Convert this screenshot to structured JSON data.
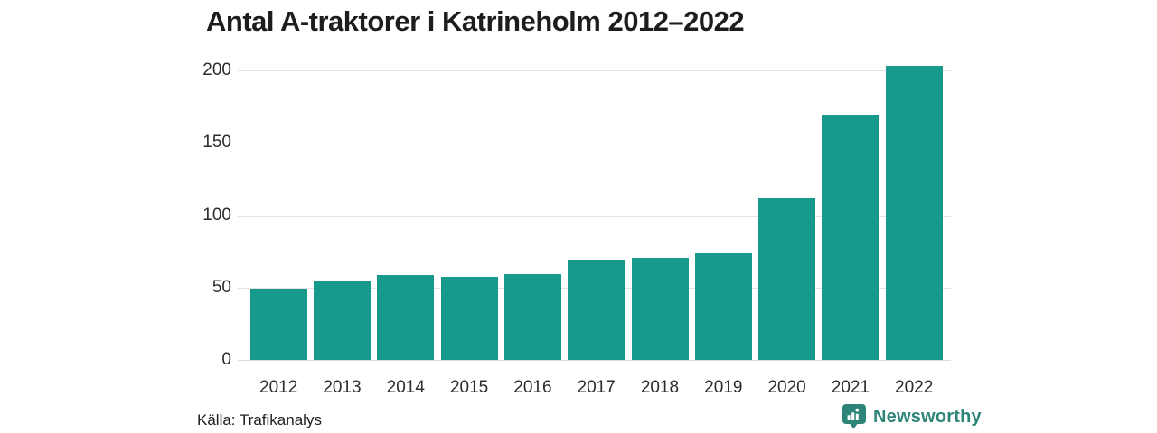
{
  "title": "Antal A-traktorer i Katrineholm 2012–2022",
  "source": "Källa: Trafikanalys",
  "branding": {
    "name": "Newsworthy",
    "logo_icon": "newsworthy-bar-chart-bubble-icon"
  },
  "colors": {
    "bar": "#179a8b",
    "brand_teal": "#2e8577",
    "title_text": "#1d1d1f",
    "tick_text": "#2c2c2c",
    "grid": "#e4e4e4"
  },
  "chart_data": {
    "type": "bar",
    "title": "Antal A-traktorer i Katrineholm 2012–2022",
    "categories": [
      "2012",
      "2013",
      "2014",
      "2015",
      "2016",
      "2017",
      "2018",
      "2019",
      "2020",
      "2021",
      "2022"
    ],
    "values": [
      50,
      55,
      59,
      58,
      60,
      70,
      71,
      75,
      112,
      170,
      204
    ],
    "xlabel": "",
    "ylabel": "",
    "ylim": [
      0,
      200
    ],
    "yticks": [
      0,
      50,
      100,
      150,
      200
    ],
    "grid": "horizontal-only",
    "legend": "none",
    "bar_color": "#179a8b",
    "source_label": "Källa: Trafikanalys"
  }
}
